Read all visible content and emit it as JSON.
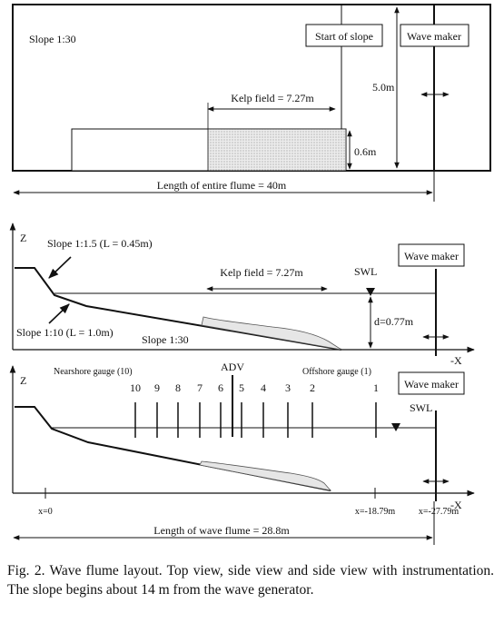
{
  "top_view": {
    "slope_label": "Slope 1:30",
    "start_of_slope": "Start of slope",
    "wave_maker": "Wave maker",
    "width_label": "5.0m",
    "kelp_field": "Kelp field = 7.27m",
    "kelp_width": "0.6m",
    "flume_length": "Length of entire flume = 40m"
  },
  "side_view": {
    "z_axis": "Z",
    "slope_1": "Slope 1:1.5 (L = 0.45m)",
    "slope_2": "Slope 1:10 (L = 1.0m)",
    "slope_3": "Slope 1:30",
    "kelp_field": "Kelp field = 7.27m",
    "swl": "SWL",
    "depth": "d=0.77m",
    "wave_maker": "Wave maker",
    "x_axis": "-X"
  },
  "instrument_view": {
    "z_axis": "Z",
    "adv": "ADV",
    "nearshore": "Nearshore gauge (10)",
    "offshore": "Offshore gauge (1)",
    "gauges": [
      "10",
      "9",
      "8",
      "7",
      "6",
      "5",
      "4",
      "3",
      "2",
      "1"
    ],
    "swl": "SWL",
    "wave_maker": "Wave maker",
    "x_axis": "-X",
    "x0": "x=0",
    "x1": "x=-18.79m",
    "x2": "x=-27.79m",
    "wave_flume_length": "Length of wave flume = 28.8m"
  },
  "caption": "Fig. 2. Wave flume layout. Top view, side view and side view with instrumentation. The slope begins about 14 m from the wave generator."
}
